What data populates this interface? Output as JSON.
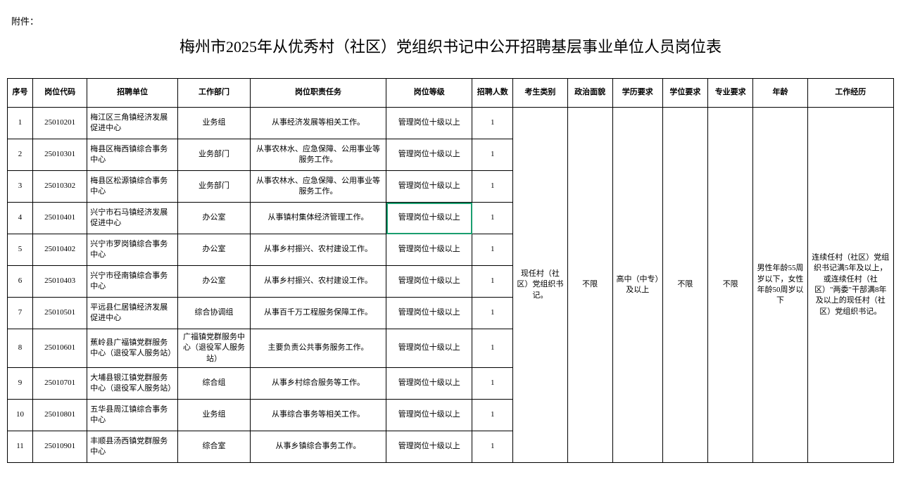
{
  "attachment_label": "附件：",
  "title": "梅州市2025年从优秀村（社区）党组织书记中公开招聘基层事业单位人员岗位表",
  "columns": [
    "序号",
    "岗位代码",
    "招聘单位",
    "工作部门",
    "岗位职责任务",
    "岗位等级",
    "招聘人数",
    "考生类别",
    "政治面貌",
    "学历要求",
    "学位要求",
    "专业要求",
    "年龄",
    "工作经历"
  ],
  "rows": [
    {
      "seq": "1",
      "code": "25010201",
      "unit": "梅江区三角镇经济发展促进中心",
      "dept": "业务组",
      "duty": "从事经济发展等相关工作。",
      "level": "管理岗位十级以上",
      "count": "1"
    },
    {
      "seq": "2",
      "code": "25010301",
      "unit": "梅县区梅西镇综合事务中心",
      "dept": "业务部门",
      "duty": "从事农林水、应急保障、公用事业等服务工作。",
      "level": "管理岗位十级以上",
      "count": "1"
    },
    {
      "seq": "3",
      "code": "25010302",
      "unit": "梅县区松源镇综合事务中心",
      "dept": "业务部门",
      "duty": "从事农林水、应急保障、公用事业等服务工作。",
      "level": "管理岗位十级以上",
      "count": "1"
    },
    {
      "seq": "4",
      "code": "25010401",
      "unit": "兴宁市石马镇经济发展促进中心",
      "dept": "办公室",
      "duty": "从事镇村集体经济管理工作。",
      "level": "管理岗位十级以上",
      "count": "1",
      "selected": true
    },
    {
      "seq": "5",
      "code": "25010402",
      "unit": "兴宁市罗岗镇综合事务中心",
      "dept": "办公室",
      "duty": "从事乡村振兴、农村建设工作。",
      "level": "管理岗位十级以上",
      "count": "1"
    },
    {
      "seq": "6",
      "code": "25010403",
      "unit": "兴宁市径南镇综合事务中心",
      "dept": "办公室",
      "duty": "从事乡村振兴、农村建设工作。",
      "level": "管理岗位十级以上",
      "count": "1"
    },
    {
      "seq": "7",
      "code": "25010501",
      "unit": "平远县仁居镇经济发展促进中心",
      "dept": "综合协调组",
      "duty": "从事百千万工程服务保障工作。",
      "level": "管理岗位十级以上",
      "count": "1"
    },
    {
      "seq": "8",
      "code": "25010601",
      "unit": "蕉岭县广福镇党群服务中心（退役军人服务站）",
      "dept": "广福镇党群服务中心（退役军人服务站）",
      "duty": "主要负责公共事务服务工作。",
      "level": "管理岗位十级以上",
      "count": "1"
    },
    {
      "seq": "9",
      "code": "25010701",
      "unit": "大埔县银江镇党群服务中心（退役军人服务站）",
      "dept": "综合组",
      "duty": "从事乡村综合服务等工作。",
      "level": "管理岗位十级以上",
      "count": "1"
    },
    {
      "seq": "10",
      "code": "25010801",
      "unit": "五华县周江镇综合事务中心",
      "dept": "业务组",
      "duty": "从事综合事务等相关工作。",
      "level": "管理岗位十级以上",
      "count": "1"
    },
    {
      "seq": "11",
      "code": "25010901",
      "unit": "丰顺县汤西镇党群服务中心",
      "dept": "综合室",
      "duty": "从事乡镇综合事务工作。",
      "level": "管理岗位十级以上",
      "count": "1"
    }
  ],
  "merged": {
    "candidate_type": "现任村（社区）党组织书记。",
    "political": "不限",
    "education": "高中（中专）及以上",
    "degree": "不限",
    "major": "不限",
    "age": "男性年龄55周岁以下，女性年龄50周岁以下",
    "experience": "连续任村（社区）党组织书记满5年及以上，或连续任村（社区）\"两委\"干部满8年及以上的现任村（社区）党组织书记。"
  },
  "style": {
    "title_fontsize": 22,
    "cell_fontsize": 11,
    "border_color": "#000000",
    "selection_color": "#1a9e6f",
    "background": "#ffffff"
  }
}
